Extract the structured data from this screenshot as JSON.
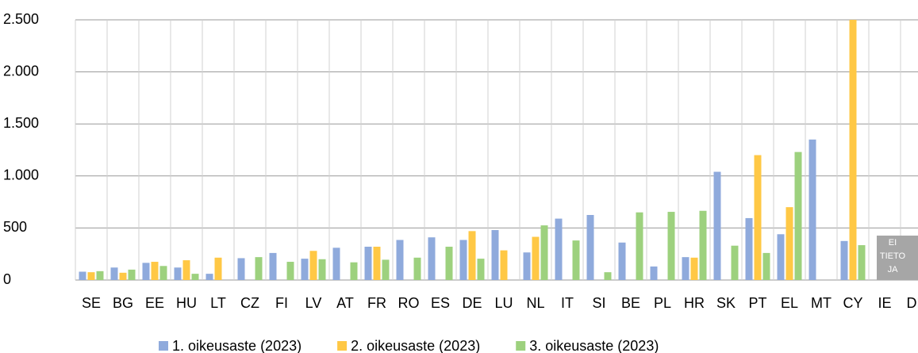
{
  "chart_data": {
    "type": "bar",
    "categories": [
      "SE",
      "BG",
      "EE",
      "HU",
      "LT",
      "CZ",
      "FI",
      "LV",
      "AT",
      "FR",
      "RO",
      "ES",
      "DE",
      "LU",
      "NL",
      "IT",
      "SI",
      "BE",
      "PL",
      "HR",
      "SK",
      "PT",
      "EL",
      "MT",
      "CY",
      "IE",
      "DK"
    ],
    "series": [
      {
        "name": "1. oikeusaste (2023)",
        "color": "#8faadc",
        "values": [
          80,
          120,
          165,
          120,
          60,
          210,
          260,
          205,
          310,
          320,
          385,
          410,
          385,
          480,
          265,
          590,
          625,
          360,
          130,
          220,
          1040,
          595,
          440,
          1350,
          375,
          null,
          null
        ]
      },
      {
        "name": "2. oikeusaste (2023)",
        "color": "#ffc845",
        "values": [
          75,
          70,
          175,
          190,
          215,
          null,
          null,
          280,
          null,
          320,
          null,
          null,
          470,
          285,
          415,
          null,
          null,
          null,
          null,
          215,
          null,
          1200,
          700,
          null,
          2500,
          null,
          null
        ]
      },
      {
        "name": "3. oikeusaste (2023)",
        "color": "#9dd17e",
        "values": [
          85,
          100,
          135,
          60,
          null,
          220,
          175,
          200,
          170,
          195,
          215,
          320,
          205,
          null,
          525,
          380,
          75,
          650,
          655,
          665,
          330,
          260,
          1230,
          null,
          335,
          null,
          null
        ]
      }
    ],
    "ylim": [
      0,
      2500
    ],
    "yticks": [
      0,
      500,
      {
        "value": 1000,
        "label": "1.000"
      },
      {
        "value": 1500,
        "label": "1.500"
      },
      {
        "value": 2000,
        "label": "2.000"
      },
      {
        "value": 2500,
        "label": "2.500"
      }
    ],
    "grid": true,
    "legend": "bottom",
    "annotation": [
      "EI",
      "TIETO",
      "JA"
    ]
  }
}
